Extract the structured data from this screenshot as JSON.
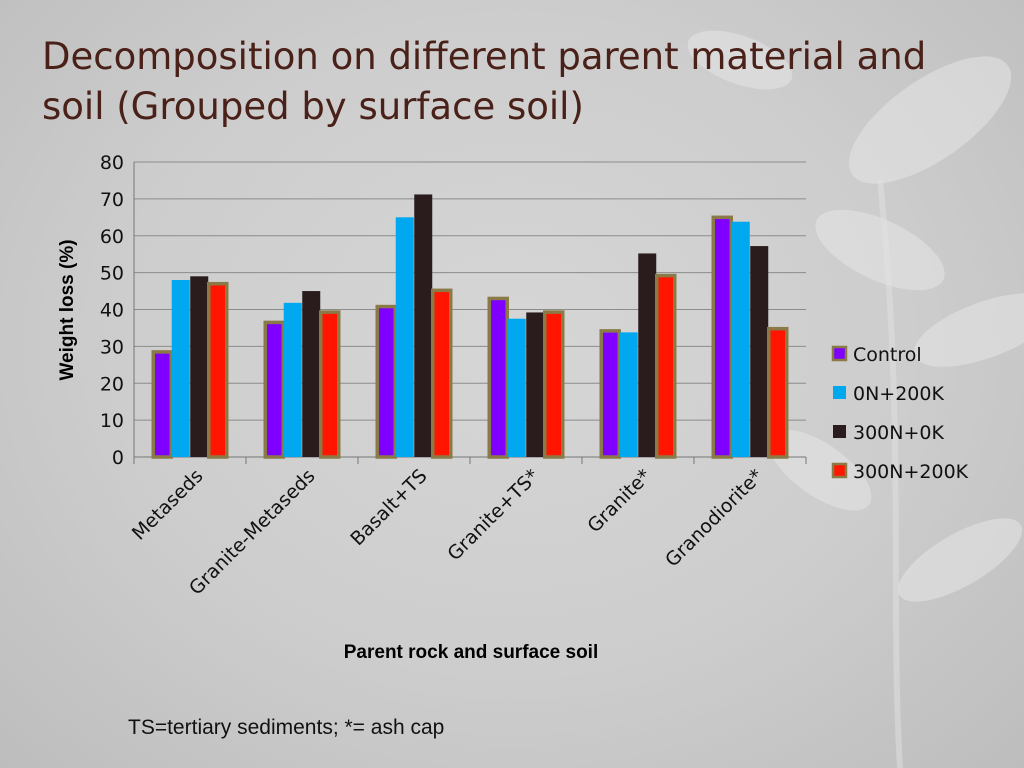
{
  "slide": {
    "title": "Decomposition on different parent material and soil (Grouped by surface soil)",
    "footnote": "TS=tertiary sediments; *= ash cap"
  },
  "colors": {
    "title": "#4a2118",
    "outline": "#8a7a48",
    "gridline": "#8c8c8c"
  },
  "chart_data": {
    "type": "bar",
    "categories": [
      "Metaseds",
      "Granite-Metaseds",
      "Basalt+TS",
      "Granite+TS*",
      "Granite*",
      "Granodiorite*"
    ],
    "series": [
      {
        "name": "Control",
        "color": "#7f00ff",
        "values": [
          28.5,
          36.5,
          40.8,
          43.0,
          34.2,
          65.0
        ]
      },
      {
        "name": "0N+200K",
        "color": "#00a8f0",
        "values": [
          48.0,
          41.8,
          65.0,
          37.5,
          33.8,
          63.8
        ]
      },
      {
        "name": "300N+0K",
        "color": "#2a1c1c",
        "values": [
          49.0,
          45.0,
          71.2,
          39.2,
          55.2,
          57.2
        ]
      },
      {
        "name": "300N+200K",
        "color": "#ff1500",
        "values": [
          47.0,
          39.3,
          45.2,
          39.3,
          49.2,
          34.8
        ]
      }
    ],
    "outlined_series": [
      "Control",
      "300N+200K"
    ],
    "title": "",
    "xlabel": "Parent rock and surface soil",
    "ylabel": "Weight loss (%)",
    "ylim": [
      0,
      80
    ],
    "yticks": [
      "0",
      "10",
      "20",
      "30",
      "40",
      "50",
      "60",
      "70",
      "80"
    ],
    "grid": true,
    "legend_position": "right"
  }
}
